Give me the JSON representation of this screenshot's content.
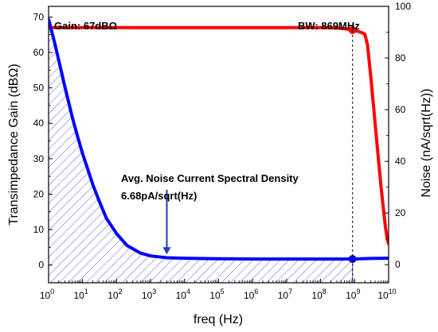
{
  "chart_data": {
    "type": "line",
    "xlabel": "freq (Hz)",
    "ylabel_left": "Transimpedance Gain (dBΩ)",
    "ylabel_right": "Noise (nA/sqrt(Hz))",
    "x_scale": "log",
    "xlim": [
      1,
      10000000000
    ],
    "ylim_left": [
      -5,
      73
    ],
    "ylim_right": [
      -7,
      100
    ],
    "x_ticks": [
      {
        "value": 1,
        "base": "10",
        "exp": "0"
      },
      {
        "value": 10,
        "base": "10",
        "exp": "1"
      },
      {
        "value": 100,
        "base": "10",
        "exp": "2"
      },
      {
        "value": 1000,
        "base": "10",
        "exp": "3"
      },
      {
        "value": 10000,
        "base": "10",
        "exp": "4"
      },
      {
        "value": 100000,
        "base": "10",
        "exp": "5"
      },
      {
        "value": 1000000,
        "base": "10",
        "exp": "6"
      },
      {
        "value": 10000000,
        "base": "10",
        "exp": "7"
      },
      {
        "value": 100000000,
        "base": "10",
        "exp": "8"
      },
      {
        "value": 1000000000,
        "base": "10",
        "exp": "9"
      },
      {
        "value": 10000000000,
        "base": "10",
        "exp": "10"
      }
    ],
    "y_ticks_left": [
      0,
      10,
      20,
      30,
      40,
      50,
      60,
      70
    ],
    "y_ticks_right": [
      0,
      20,
      40,
      60,
      80,
      100
    ],
    "series": [
      {
        "axis": "left",
        "color": "#ff0000",
        "x": [
          1,
          10,
          100,
          1000,
          10000,
          100000,
          1000000,
          10000000,
          100000000,
          300000000,
          600000000,
          869000000,
          1200000000,
          1600000000,
          2000000000,
          2400000000,
          3000000000,
          4000000000,
          5000000000,
          6000000000,
          7000000000,
          8000000000,
          9000000000,
          10000000000
        ],
        "values": [
          67,
          67,
          67,
          67,
          67,
          67,
          67,
          67,
          67,
          66.9,
          66.6,
          66.3,
          66.0,
          65.6,
          65.2,
          62,
          53,
          40,
          30,
          22,
          16,
          11,
          7.5,
          6
        ]
      },
      {
        "axis": "right",
        "color": "#0000ff",
        "x": [
          1,
          1.5,
          2,
          3,
          5,
          7,
          10,
          20,
          30,
          50,
          100,
          200,
          500,
          1000,
          3000,
          10000,
          100000,
          1000000,
          10000000,
          100000000,
          869000000,
          3000000000,
          10000000000
        ],
        "values": [
          95,
          86,
          79,
          69,
          57,
          50,
          43,
          31,
          25,
          18,
          12,
          7.5,
          4.5,
          3.4,
          2.7,
          2.5,
          2.3,
          2.2,
          2.2,
          2.2,
          2.2,
          2.4,
          2.5
        ]
      }
    ],
    "markers": [
      {
        "axis": "left",
        "x": 869000000,
        "y": 66.3,
        "color": "#ff0000"
      },
      {
        "axis": "right",
        "x": 869000000,
        "y": 2.2,
        "color": "#0000ff"
      }
    ],
    "annotations": {
      "gain": "Gain: 67dBΩ",
      "bw": "BW: 869MHz",
      "noise_line1": "Avg. Noise Current Spectral Density",
      "noise_line2": "6.68pA/sqrt(Hz)"
    },
    "bw_freq": 869000000,
    "arrow_x": 3000,
    "arrow_y_top": 29,
    "arrow_y_bottom": 4,
    "hatched_area": "under noise curve"
  }
}
